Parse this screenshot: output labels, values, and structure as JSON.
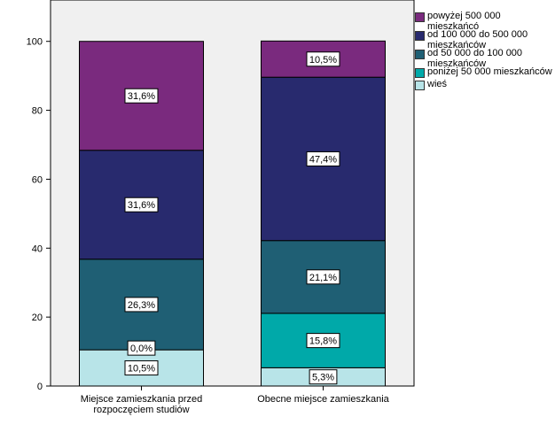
{
  "chart_data": {
    "type": "bar",
    "stacked": true,
    "categories": [
      "Miejsce zamieszkania przed rozpoczęciem studiów",
      "Obecne miejsce zamieszkania"
    ],
    "category_lines": [
      [
        "Miejsce zamieszkania przed",
        "rozpoczęciem studiów"
      ],
      [
        "Obecne miejsce zamieszkania"
      ]
    ],
    "series": [
      {
        "name": "wieś",
        "values": [
          10.5,
          5.3
        ],
        "labels": [
          "10,5%",
          "5,3%"
        ],
        "color": "#b8e4e8"
      },
      {
        "name": "poniżej 50 000 mieszkańców",
        "values": [
          0.0,
          15.8
        ],
        "labels": [
          "0,0%",
          "15,8%"
        ],
        "color": "#00a9a9"
      },
      {
        "name": "od 50 000 do 100 000 mieszkańców",
        "values": [
          26.3,
          21.1
        ],
        "labels": [
          "26,3%",
          "21,1%"
        ],
        "color": "#1f5f74"
      },
      {
        "name": "od 100 000 do 500 000 mieszkańców",
        "values": [
          31.6,
          47.4
        ],
        "labels": [
          "31,6%",
          "47,4%"
        ],
        "color": "#282a6e"
      },
      {
        "name": "powyżej 500 000 mieszkańcó",
        "values": [
          31.6,
          10.5
        ],
        "labels": [
          "31,6%",
          "10,5%"
        ],
        "color": "#7a2a7e"
      }
    ],
    "legend_lines": [
      [
        "powyżej 500 000 mieszkańcó"
      ],
      [
        "od 100 000 do 500 000",
        "mieszkańców"
      ],
      [
        "od 50 000 do 100 000",
        "mieszkańców"
      ],
      [
        "poniżej 50 000 mieszkańców"
      ],
      [
        "wieś"
      ]
    ],
    "yticks": [
      "0",
      "20",
      "40",
      "60",
      "80",
      "100"
    ],
    "ylim": [
      0,
      112
    ],
    "legend_position": "right",
    "grid": false,
    "plot_background": "#f0f0f0"
  }
}
